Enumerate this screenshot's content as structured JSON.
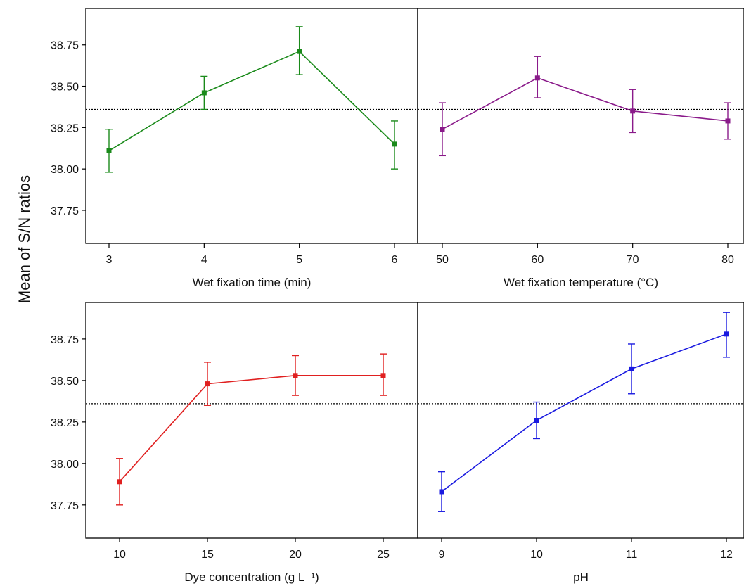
{
  "ylabel": "Mean of S/N ratios",
  "y_ticks": [
    "37.75",
    "38.00",
    "38.25",
    "38.50",
    "38.75"
  ],
  "reference_mean": 38.36,
  "chart_data": [
    {
      "type": "line",
      "xlabel": "Wet fixation time (min)",
      "x": [
        3,
        4,
        5,
        6
      ],
      "x_ticks": [
        "3",
        "4",
        "5",
        "6"
      ],
      "y": [
        38.11,
        38.46,
        38.71,
        38.15
      ],
      "err_low": [
        37.98,
        38.36,
        38.57,
        38.0
      ],
      "err_high": [
        38.24,
        38.56,
        38.86,
        38.29
      ],
      "ylim": [
        37.55,
        38.97
      ],
      "color": "#1a8a1a"
    },
    {
      "type": "line",
      "xlabel": "Wet fixation temperature (°C)",
      "x": [
        50,
        60,
        70,
        80
      ],
      "x_ticks": [
        "50",
        "60",
        "70",
        "80"
      ],
      "y": [
        38.24,
        38.55,
        38.35,
        38.29
      ],
      "err_low": [
        38.08,
        38.43,
        38.22,
        38.18
      ],
      "err_high": [
        38.4,
        38.68,
        38.48,
        38.4
      ],
      "ylim": [
        37.55,
        38.97
      ],
      "color": "#8a1a8a"
    },
    {
      "type": "line",
      "xlabel": "Dye concentration (g L⁻¹)",
      "x": [
        10,
        15,
        20,
        25
      ],
      "x_ticks": [
        "10",
        "15",
        "20",
        "25"
      ],
      "y": [
        37.89,
        38.48,
        38.53,
        38.53
      ],
      "err_low": [
        37.75,
        38.35,
        38.41,
        38.41
      ],
      "err_high": [
        38.03,
        38.61,
        38.65,
        38.66
      ],
      "ylim": [
        37.55,
        38.97
      ],
      "color": "#e02020"
    },
    {
      "type": "line",
      "xlabel": "pH",
      "x": [
        9,
        10,
        11,
        12
      ],
      "x_ticks": [
        "9",
        "10",
        "11",
        "12"
      ],
      "y": [
        37.83,
        38.26,
        38.57,
        38.78
      ],
      "err_low": [
        37.71,
        38.15,
        38.42,
        38.64
      ],
      "err_high": [
        37.95,
        38.37,
        38.72,
        38.91
      ],
      "ylim": [
        37.55,
        38.97
      ],
      "color": "#1a1ae0"
    }
  ]
}
